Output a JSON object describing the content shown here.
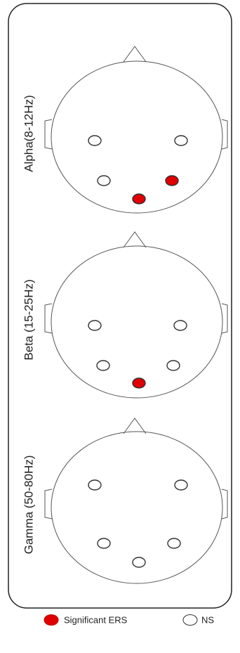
{
  "panels": [
    {
      "label": "Alpha(8-12Hz)"
    },
    {
      "label": "Beta (15-25Hz)"
    },
    {
      "label": "Gamma (50-80Hz)"
    }
  ],
  "legend": [
    {
      "label": "Significant ERS"
    },
    {
      "label": "NS"
    }
  ]
}
